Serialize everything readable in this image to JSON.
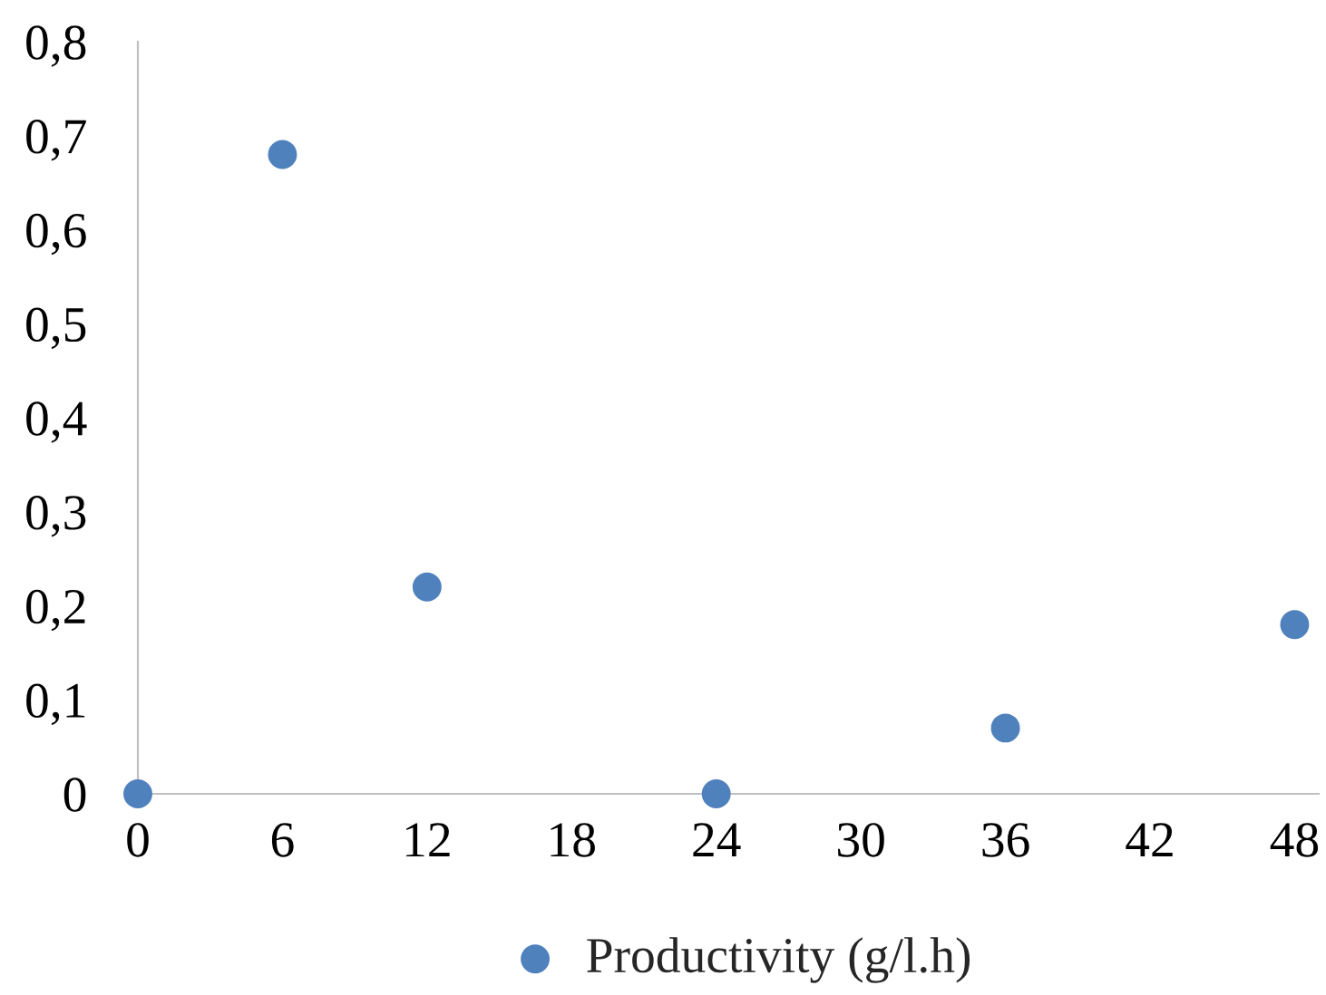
{
  "chart_data": {
    "type": "scatter",
    "x": [
      0,
      6,
      12,
      24,
      36,
      48
    ],
    "series": [
      {
        "name": "Productivity (g/l.h)",
        "color": "#4f81bd",
        "values": [
          0,
          0.68,
          0.22,
          0,
          0.07,
          0.18
        ]
      }
    ],
    "xlim": [
      0,
      49
    ],
    "xticks": [
      0,
      6,
      12,
      18,
      24,
      30,
      36,
      42,
      48
    ],
    "ylim": [
      0,
      0.8
    ],
    "yticks": [
      {
        "value": 0,
        "label": "0"
      },
      {
        "value": 0.1,
        "label": "0,1"
      },
      {
        "value": 0.2,
        "label": "0,2"
      },
      {
        "value": 0.3,
        "label": "0,3"
      },
      {
        "value": 0.4,
        "label": "0,4"
      },
      {
        "value": 0.5,
        "label": "0,5"
      },
      {
        "value": 0.6,
        "label": "0,6"
      },
      {
        "value": 0.7,
        "label": "0,7"
      },
      {
        "value": 0.8,
        "label": "0,8"
      }
    ],
    "grid": false,
    "legend": "bottom",
    "marker": "circle"
  }
}
